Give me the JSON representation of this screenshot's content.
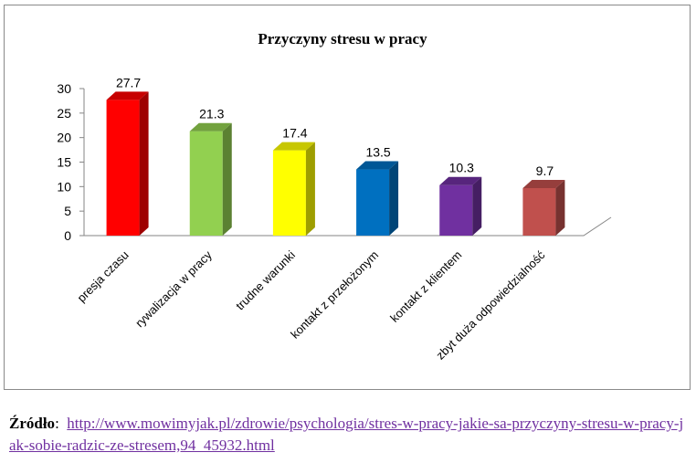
{
  "chart_data": {
    "type": "bar",
    "title": "Przyczyny stresu w pracy",
    "categories": [
      "presja czasu",
      "rywalizacja w pracy",
      "trudne warunki",
      "kontakt z przełożonym",
      "kontakt z klientem",
      "zbyt duża odpowiedzialność"
    ],
    "values": [
      27.7,
      21.3,
      17.4,
      13.5,
      10.3,
      9.7
    ],
    "value_labels": [
      "27.7",
      "21.3",
      "17.4",
      "13.5",
      "10.3",
      "9.7"
    ],
    "colors": [
      "#ff0000",
      "#92d050",
      "#ffff00",
      "#0070c0",
      "#7030a0",
      "#c0504d"
    ],
    "yticks": [
      "0",
      "5",
      "10",
      "15",
      "20",
      "25",
      "30"
    ],
    "ylim": [
      0,
      30
    ],
    "xlabel": "",
    "ylabel": "",
    "grid": false,
    "legend": "none",
    "style": "3d-column"
  },
  "source": {
    "label": "Źródło",
    "separator": ":",
    "url": "http://www.mowimyjak.pl/zdrowie/psychologia/stres-w-pracy-jakie-sa-przyczyny-stresu-w-pracy-jak-sobie-radzic-ze-stresem,94_45932.html"
  }
}
